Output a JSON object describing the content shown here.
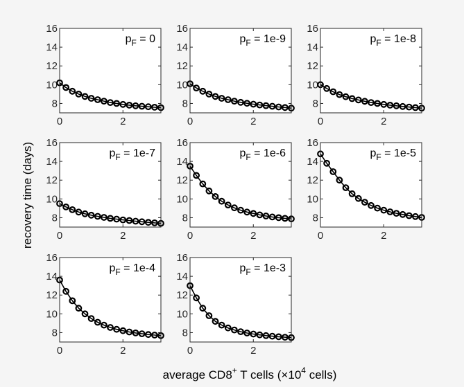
{
  "figure": {
    "ylabel": "recovery time (days)",
    "xlabel_parts": {
      "a": "average CD8",
      "sup1": "+",
      "b": " T cells (",
      "times": "×",
      "c": "10",
      "sup2": "4",
      "d": " cells)"
    }
  },
  "chart_data": [
    {
      "type": "line",
      "title": "pF = 0",
      "legend": {
        "p": "p",
        "sub": "F",
        "value": " = 0"
      },
      "x": [
        0,
        0.2,
        0.4,
        0.6,
        0.8,
        1.0,
        1.2,
        1.4,
        1.6,
        1.8,
        2.0,
        2.2,
        2.4,
        2.6,
        2.8,
        3.0,
        3.2
      ],
      "values": [
        10.2,
        9.7,
        9.3,
        9.0,
        8.75,
        8.55,
        8.4,
        8.25,
        8.1,
        8.0,
        7.9,
        7.82,
        7.75,
        7.7,
        7.65,
        7.6,
        7.55
      ],
      "xlim": [
        0,
        3.2
      ],
      "ylim": [
        7,
        16
      ],
      "xticks": [
        "0",
        "2"
      ],
      "yticks": [
        "8",
        "10",
        "12",
        "14",
        "16"
      ]
    },
    {
      "type": "line",
      "title": "pF = 1e-9",
      "legend": {
        "p": "p",
        "sub": "F",
        "value": " = 1e-9"
      },
      "x": [
        0,
        0.2,
        0.4,
        0.6,
        0.8,
        1.0,
        1.2,
        1.4,
        1.6,
        1.8,
        2.0,
        2.2,
        2.4,
        2.6,
        2.8,
        3.0,
        3.2
      ],
      "values": [
        10.1,
        9.65,
        9.3,
        9.0,
        8.75,
        8.55,
        8.4,
        8.25,
        8.12,
        8.02,
        7.92,
        7.84,
        7.77,
        7.7,
        7.63,
        7.57,
        7.5
      ],
      "xlim": [
        0,
        3.2
      ],
      "ylim": [
        7,
        16
      ],
      "xticks": [
        "0",
        "2"
      ],
      "yticks": [
        "8",
        "10",
        "12",
        "14",
        "16"
      ]
    },
    {
      "type": "line",
      "title": "pF = 1e-8",
      "legend": {
        "p": "p",
        "sub": "F",
        "value": " = 1e-8"
      },
      "x": [
        0,
        0.2,
        0.4,
        0.6,
        0.8,
        1.0,
        1.2,
        1.4,
        1.6,
        1.8,
        2.0,
        2.2,
        2.4,
        2.6,
        2.8,
        3.0,
        3.2
      ],
      "values": [
        10.0,
        9.6,
        9.25,
        8.95,
        8.72,
        8.52,
        8.37,
        8.23,
        8.1,
        8.0,
        7.9,
        7.82,
        7.75,
        7.68,
        7.62,
        7.56,
        7.5
      ],
      "xlim": [
        0,
        3.2
      ],
      "ylim": [
        7,
        16
      ],
      "xticks": [
        "0",
        "2"
      ],
      "yticks": [
        "8",
        "10",
        "12",
        "14",
        "16"
      ]
    },
    {
      "type": "line",
      "title": "pF = 1e-7",
      "legend": {
        "p": "p",
        "sub": "F",
        "value": " = 1e-7"
      },
      "x": [
        0,
        0.2,
        0.4,
        0.6,
        0.8,
        1.0,
        1.2,
        1.4,
        1.6,
        1.8,
        2.0,
        2.2,
        2.4,
        2.6,
        2.8,
        3.0,
        3.2
      ],
      "values": [
        9.5,
        9.15,
        8.85,
        8.6,
        8.42,
        8.27,
        8.14,
        8.03,
        7.93,
        7.85,
        7.77,
        7.7,
        7.63,
        7.57,
        7.5,
        7.45,
        7.4
      ],
      "xlim": [
        0,
        3.2
      ],
      "ylim": [
        7,
        16
      ],
      "xticks": [
        "0",
        "2"
      ],
      "yticks": [
        "8",
        "10",
        "12",
        "14",
        "16"
      ]
    },
    {
      "type": "line",
      "title": "pF = 1e-6",
      "legend": {
        "p": "p",
        "sub": "F",
        "value": " = 1e-6"
      },
      "x": [
        0,
        0.2,
        0.4,
        0.6,
        0.8,
        1.0,
        1.2,
        1.4,
        1.6,
        1.8,
        2.0,
        2.2,
        2.4,
        2.6,
        2.8,
        3.0,
        3.2
      ],
      "values": [
        13.5,
        12.5,
        11.6,
        10.85,
        10.25,
        9.75,
        9.35,
        9.05,
        8.8,
        8.6,
        8.45,
        8.3,
        8.18,
        8.08,
        8.0,
        7.93,
        7.87
      ],
      "xlim": [
        0,
        3.2
      ],
      "ylim": [
        7,
        16
      ],
      "xticks": [
        "0",
        "2"
      ],
      "yticks": [
        "8",
        "10",
        "12",
        "14",
        "16"
      ]
    },
    {
      "type": "line",
      "title": "pF = 1e-5",
      "legend": {
        "p": "p",
        "sub": "F",
        "value": " = 1e-5"
      },
      "x": [
        0,
        0.2,
        0.4,
        0.6,
        0.8,
        1.0,
        1.2,
        1.4,
        1.6,
        1.8,
        2.0,
        2.2,
        2.4,
        2.6,
        2.8,
        3.0,
        3.2
      ],
      "values": [
        14.8,
        13.8,
        12.9,
        12.0,
        11.2,
        10.55,
        10.05,
        9.65,
        9.3,
        9.02,
        8.8,
        8.62,
        8.47,
        8.34,
        8.22,
        8.12,
        8.03
      ],
      "xlim": [
        0,
        3.2
      ],
      "ylim": [
        7,
        16
      ],
      "xticks": [
        "0",
        "2"
      ],
      "yticks": [
        "8",
        "10",
        "12",
        "14",
        "16"
      ]
    },
    {
      "type": "line",
      "title": "pF = 1e-4",
      "legend": {
        "p": "p",
        "sub": "F",
        "value": " = 1e-4"
      },
      "x": [
        0,
        0.2,
        0.4,
        0.6,
        0.8,
        1.0,
        1.2,
        1.4,
        1.6,
        1.8,
        2.0,
        2.2,
        2.4,
        2.6,
        2.8,
        3.0,
        3.2
      ],
      "values": [
        13.6,
        12.4,
        11.4,
        10.6,
        10.0,
        9.5,
        9.1,
        8.8,
        8.55,
        8.35,
        8.2,
        8.07,
        7.97,
        7.88,
        7.8,
        7.74,
        7.68
      ],
      "xlim": [
        0,
        3.2
      ],
      "ylim": [
        7,
        16
      ],
      "xticks": [
        "0",
        "2"
      ],
      "yticks": [
        "8",
        "10",
        "12",
        "14",
        "16"
      ]
    },
    {
      "type": "line",
      "title": "pF = 1e-3",
      "legend": {
        "p": "p",
        "sub": "F",
        "value": " = 1e-3"
      },
      "x": [
        0,
        0.2,
        0.4,
        0.6,
        0.8,
        1.0,
        1.2,
        1.4,
        1.6,
        1.8,
        2.0,
        2.2,
        2.4,
        2.6,
        2.8,
        3.0,
        3.2
      ],
      "values": [
        13.0,
        11.7,
        10.6,
        9.8,
        9.2,
        8.8,
        8.5,
        8.28,
        8.1,
        7.96,
        7.85,
        7.76,
        7.68,
        7.62,
        7.56,
        7.51,
        7.47
      ],
      "xlim": [
        0,
        3.2
      ],
      "ylim": [
        7,
        16
      ],
      "xticks": [
        "0",
        "2"
      ],
      "yticks": [
        "8",
        "10",
        "12",
        "14",
        "16"
      ]
    }
  ]
}
